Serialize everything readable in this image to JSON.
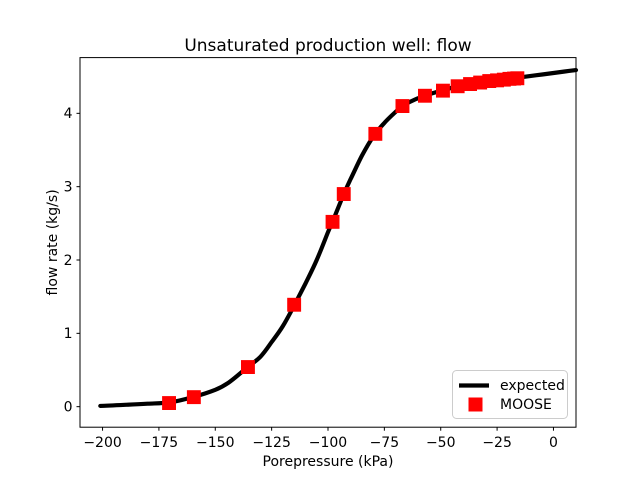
{
  "figure": {
    "background_color": "#ffffff",
    "accent_colors": {
      "line": "#000000",
      "marker": "#ff0000",
      "legend_frame": "#cccccc"
    }
  },
  "chart_data": {
    "type": "line",
    "title": "Unsaturated production well: flow",
    "xlabel": "Porepressure (kPa)",
    "ylabel": "flow rate (kg/s)",
    "xlim": [
      -210,
      10
    ],
    "ylim": [
      -0.28,
      4.76
    ],
    "grid": false,
    "xticks": {
      "values": [
        -200,
        -175,
        -150,
        -125,
        -100,
        -75,
        -50,
        -25,
        0
      ],
      "labels": [
        "−200",
        "−175",
        "−150",
        "−125",
        "−100",
        "−75",
        "−50",
        "−25",
        "0"
      ]
    },
    "yticks": {
      "values": [
        0,
        1,
        2,
        3,
        4
      ],
      "labels": [
        "0",
        "1",
        "2",
        "3",
        "4"
      ]
    },
    "legend": {
      "position": "lower right",
      "entries": [
        "expected",
        "MOOSE"
      ]
    },
    "series": [
      {
        "name": "expected",
        "type": "line",
        "color": "#000000",
        "linewidth_pt": 3,
        "points": [
          [
            -201,
            0.01
          ],
          [
            -190,
            0.025
          ],
          [
            -180,
            0.04
          ],
          [
            -170,
            0.06
          ],
          [
            -160,
            0.13
          ],
          [
            -150,
            0.23
          ],
          [
            -144,
            0.33
          ],
          [
            -136,
            0.53
          ],
          [
            -130,
            0.68
          ],
          [
            -125,
            0.88
          ],
          [
            -120,
            1.1
          ],
          [
            -115,
            1.38
          ],
          [
            -110,
            1.68
          ],
          [
            -105,
            2.0
          ],
          [
            -100,
            2.38
          ],
          [
            -98,
            2.52
          ],
          [
            -95,
            2.75
          ],
          [
            -93,
            2.9
          ],
          [
            -90,
            3.1
          ],
          [
            -85,
            3.42
          ],
          [
            -80,
            3.68
          ],
          [
            -75,
            3.87
          ],
          [
            -70,
            4.02
          ],
          [
            -67,
            4.1
          ],
          [
            -62,
            4.18
          ],
          [
            -57,
            4.24
          ],
          [
            -52,
            4.29
          ],
          [
            -49,
            4.31
          ],
          [
            -45,
            4.35
          ],
          [
            -40,
            4.38
          ],
          [
            -35,
            4.41
          ],
          [
            -30,
            4.435
          ],
          [
            -25,
            4.455
          ],
          [
            -20,
            4.47
          ],
          [
            -15,
            4.49
          ],
          [
            -10,
            4.51
          ],
          [
            -5,
            4.53
          ],
          [
            0,
            4.55
          ],
          [
            5,
            4.57
          ],
          [
            10,
            4.59
          ]
        ]
      },
      {
        "name": "MOOSE",
        "type": "scatter",
        "marker": "square",
        "color": "#ff0000",
        "markersize_pt": 10,
        "points": [
          [
            -170.5,
            0.05
          ],
          [
            -159.5,
            0.13
          ],
          [
            -135.5,
            0.54
          ],
          [
            -115,
            1.39
          ],
          [
            -98,
            2.52
          ],
          [
            -93,
            2.9
          ],
          [
            -79,
            3.72
          ],
          [
            -67,
            4.1
          ],
          [
            -57,
            4.24
          ],
          [
            -49,
            4.31
          ],
          [
            -42.5,
            4.37
          ],
          [
            -37,
            4.4
          ],
          [
            -32.5,
            4.42
          ],
          [
            -28.5,
            4.44
          ],
          [
            -25,
            4.45
          ],
          [
            -22,
            4.46
          ],
          [
            -19.5,
            4.47
          ],
          [
            -17.5,
            4.474
          ],
          [
            -16,
            4.478
          ]
        ]
      }
    ]
  }
}
